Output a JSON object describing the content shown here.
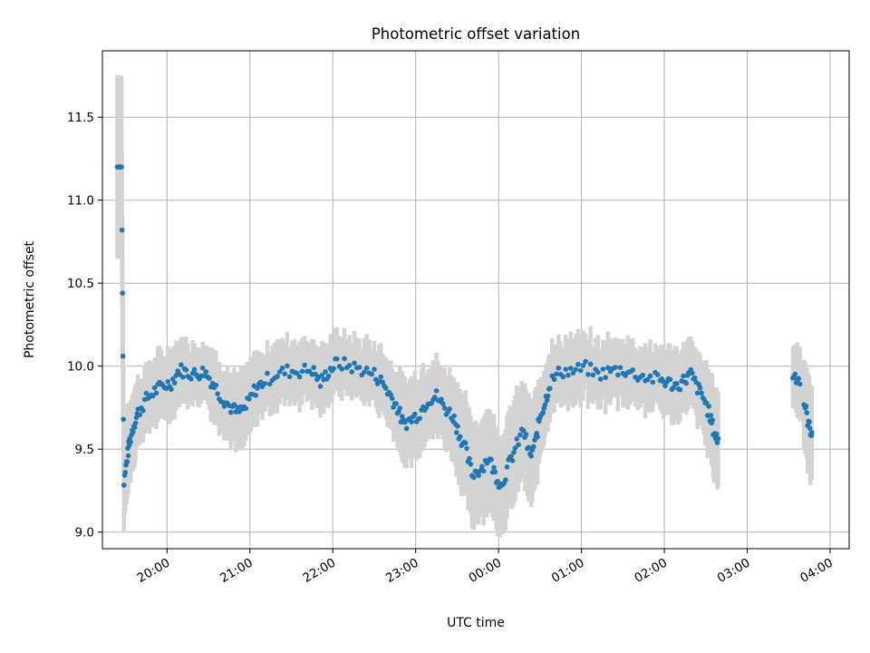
{
  "chart_data": {
    "type": "scatter",
    "title": "Photometric offset variation",
    "xlabel": "UTC time",
    "ylabel": "Photometric offset",
    "x_unit": "hours since 19:00 UTC",
    "xlim": [
      0.22,
      9.23
    ],
    "ylim": [
      8.9,
      11.9
    ],
    "x_ticks": [
      {
        "value": 1,
        "label": "20:00"
      },
      {
        "value": 2,
        "label": "21:00"
      },
      {
        "value": 3,
        "label": "22:00"
      },
      {
        "value": 4,
        "label": "23:00"
      },
      {
        "value": 5,
        "label": "00:00"
      },
      {
        "value": 6,
        "label": "01:00"
      },
      {
        "value": 7,
        "label": "02:00"
      },
      {
        "value": 8,
        "label": "03:00"
      },
      {
        "value": 9,
        "label": "04:00"
      }
    ],
    "y_ticks": [
      {
        "value": 9.0,
        "label": "9.0"
      },
      {
        "value": 9.5,
        "label": "9.5"
      },
      {
        "value": 10.0,
        "label": "10.0"
      },
      {
        "value": 10.5,
        "label": "10.5"
      },
      {
        "value": 11.0,
        "label": "11.0"
      },
      {
        "value": 11.5,
        "label": "11.5"
      }
    ],
    "grid": true,
    "colors": {
      "points": "#1f77b4",
      "errorbars": "#d3d3d3",
      "grid": "#b0b0b0"
    },
    "anchors": [
      [
        0.4,
        11.2,
        0.55
      ],
      [
        0.45,
        11.2,
        0.55
      ],
      [
        0.48,
        9.3,
        0.27
      ],
      [
        0.52,
        9.45,
        0.25
      ],
      [
        0.55,
        9.55,
        0.22
      ],
      [
        0.6,
        9.65,
        0.22
      ],
      [
        0.65,
        9.72,
        0.2
      ],
      [
        0.75,
        9.8,
        0.2
      ],
      [
        0.85,
        9.85,
        0.2
      ],
      [
        0.95,
        9.88,
        0.2
      ],
      [
        1.05,
        9.9,
        0.2
      ],
      [
        1.15,
        9.98,
        0.18
      ],
      [
        1.25,
        9.96,
        0.18
      ],
      [
        1.35,
        9.95,
        0.18
      ],
      [
        1.45,
        9.97,
        0.18
      ],
      [
        1.55,
        9.9,
        0.2
      ],
      [
        1.65,
        9.82,
        0.2
      ],
      [
        1.75,
        9.76,
        0.2
      ],
      [
        1.85,
        9.72,
        0.22
      ],
      [
        1.95,
        9.75,
        0.22
      ],
      [
        2.05,
        9.85,
        0.2
      ],
      [
        2.15,
        9.9,
        0.2
      ],
      [
        2.3,
        9.95,
        0.2
      ],
      [
        2.45,
        9.97,
        0.2
      ],
      [
        2.6,
        9.97,
        0.2
      ],
      [
        2.75,
        9.98,
        0.2
      ],
      [
        2.85,
        9.9,
        0.18
      ],
      [
        2.95,
        9.97,
        0.18
      ],
      [
        3.05,
        10.02,
        0.18
      ],
      [
        3.2,
        10.0,
        0.18
      ],
      [
        3.35,
        9.98,
        0.18
      ],
      [
        3.5,
        9.95,
        0.18
      ],
      [
        3.6,
        9.9,
        0.2
      ],
      [
        3.7,
        9.82,
        0.2
      ],
      [
        3.78,
        9.75,
        0.22
      ],
      [
        3.85,
        9.65,
        0.25
      ],
      [
        3.95,
        9.68,
        0.25
      ],
      [
        4.05,
        9.72,
        0.25
      ],
      [
        4.15,
        9.8,
        0.22
      ],
      [
        4.25,
        9.82,
        0.22
      ],
      [
        4.35,
        9.75,
        0.22
      ],
      [
        4.45,
        9.7,
        0.25
      ],
      [
        4.52,
        9.6,
        0.28
      ],
      [
        4.6,
        9.5,
        0.3
      ],
      [
        4.68,
        9.35,
        0.3
      ],
      [
        4.78,
        9.38,
        0.3
      ],
      [
        4.88,
        9.45,
        0.3
      ],
      [
        4.96,
        9.35,
        0.3
      ],
      [
        5.03,
        9.28,
        0.3
      ],
      [
        5.12,
        9.4,
        0.3
      ],
      [
        5.2,
        9.5,
        0.3
      ],
      [
        5.3,
        9.62,
        0.3
      ],
      [
        5.38,
        9.45,
        0.3
      ],
      [
        5.45,
        9.55,
        0.28
      ],
      [
        5.5,
        9.7,
        0.25
      ],
      [
        5.56,
        9.78,
        0.22
      ],
      [
        5.62,
        9.9,
        0.2
      ],
      [
        5.75,
        9.97,
        0.2
      ],
      [
        5.9,
        9.97,
        0.2
      ],
      [
        6.05,
        9.99,
        0.2
      ],
      [
        6.2,
        9.95,
        0.2
      ],
      [
        6.35,
        9.97,
        0.2
      ],
      [
        6.5,
        9.98,
        0.2
      ],
      [
        6.65,
        9.95,
        0.2
      ],
      [
        6.8,
        9.93,
        0.2
      ],
      [
        6.95,
        9.92,
        0.2
      ],
      [
        7.05,
        9.9,
        0.2
      ],
      [
        7.15,
        9.88,
        0.2
      ],
      [
        7.25,
        9.92,
        0.2
      ],
      [
        7.32,
        9.95,
        0.2
      ],
      [
        7.4,
        9.87,
        0.2
      ],
      [
        7.48,
        9.8,
        0.22
      ],
      [
        7.55,
        9.7,
        0.25
      ],
      [
        7.6,
        9.6,
        0.28
      ],
      [
        7.65,
        9.55,
        0.28
      ],
      [
        8.55,
        9.95,
        0.2
      ],
      [
        8.62,
        9.93,
        0.2
      ],
      [
        8.7,
        9.75,
        0.25
      ],
      [
        8.75,
        9.63,
        0.28
      ],
      [
        8.78,
        9.6,
        0.28
      ]
    ],
    "gaps": [
      [
        7.68,
        8.52
      ],
      [
        8.65,
        8.68
      ]
    ]
  }
}
